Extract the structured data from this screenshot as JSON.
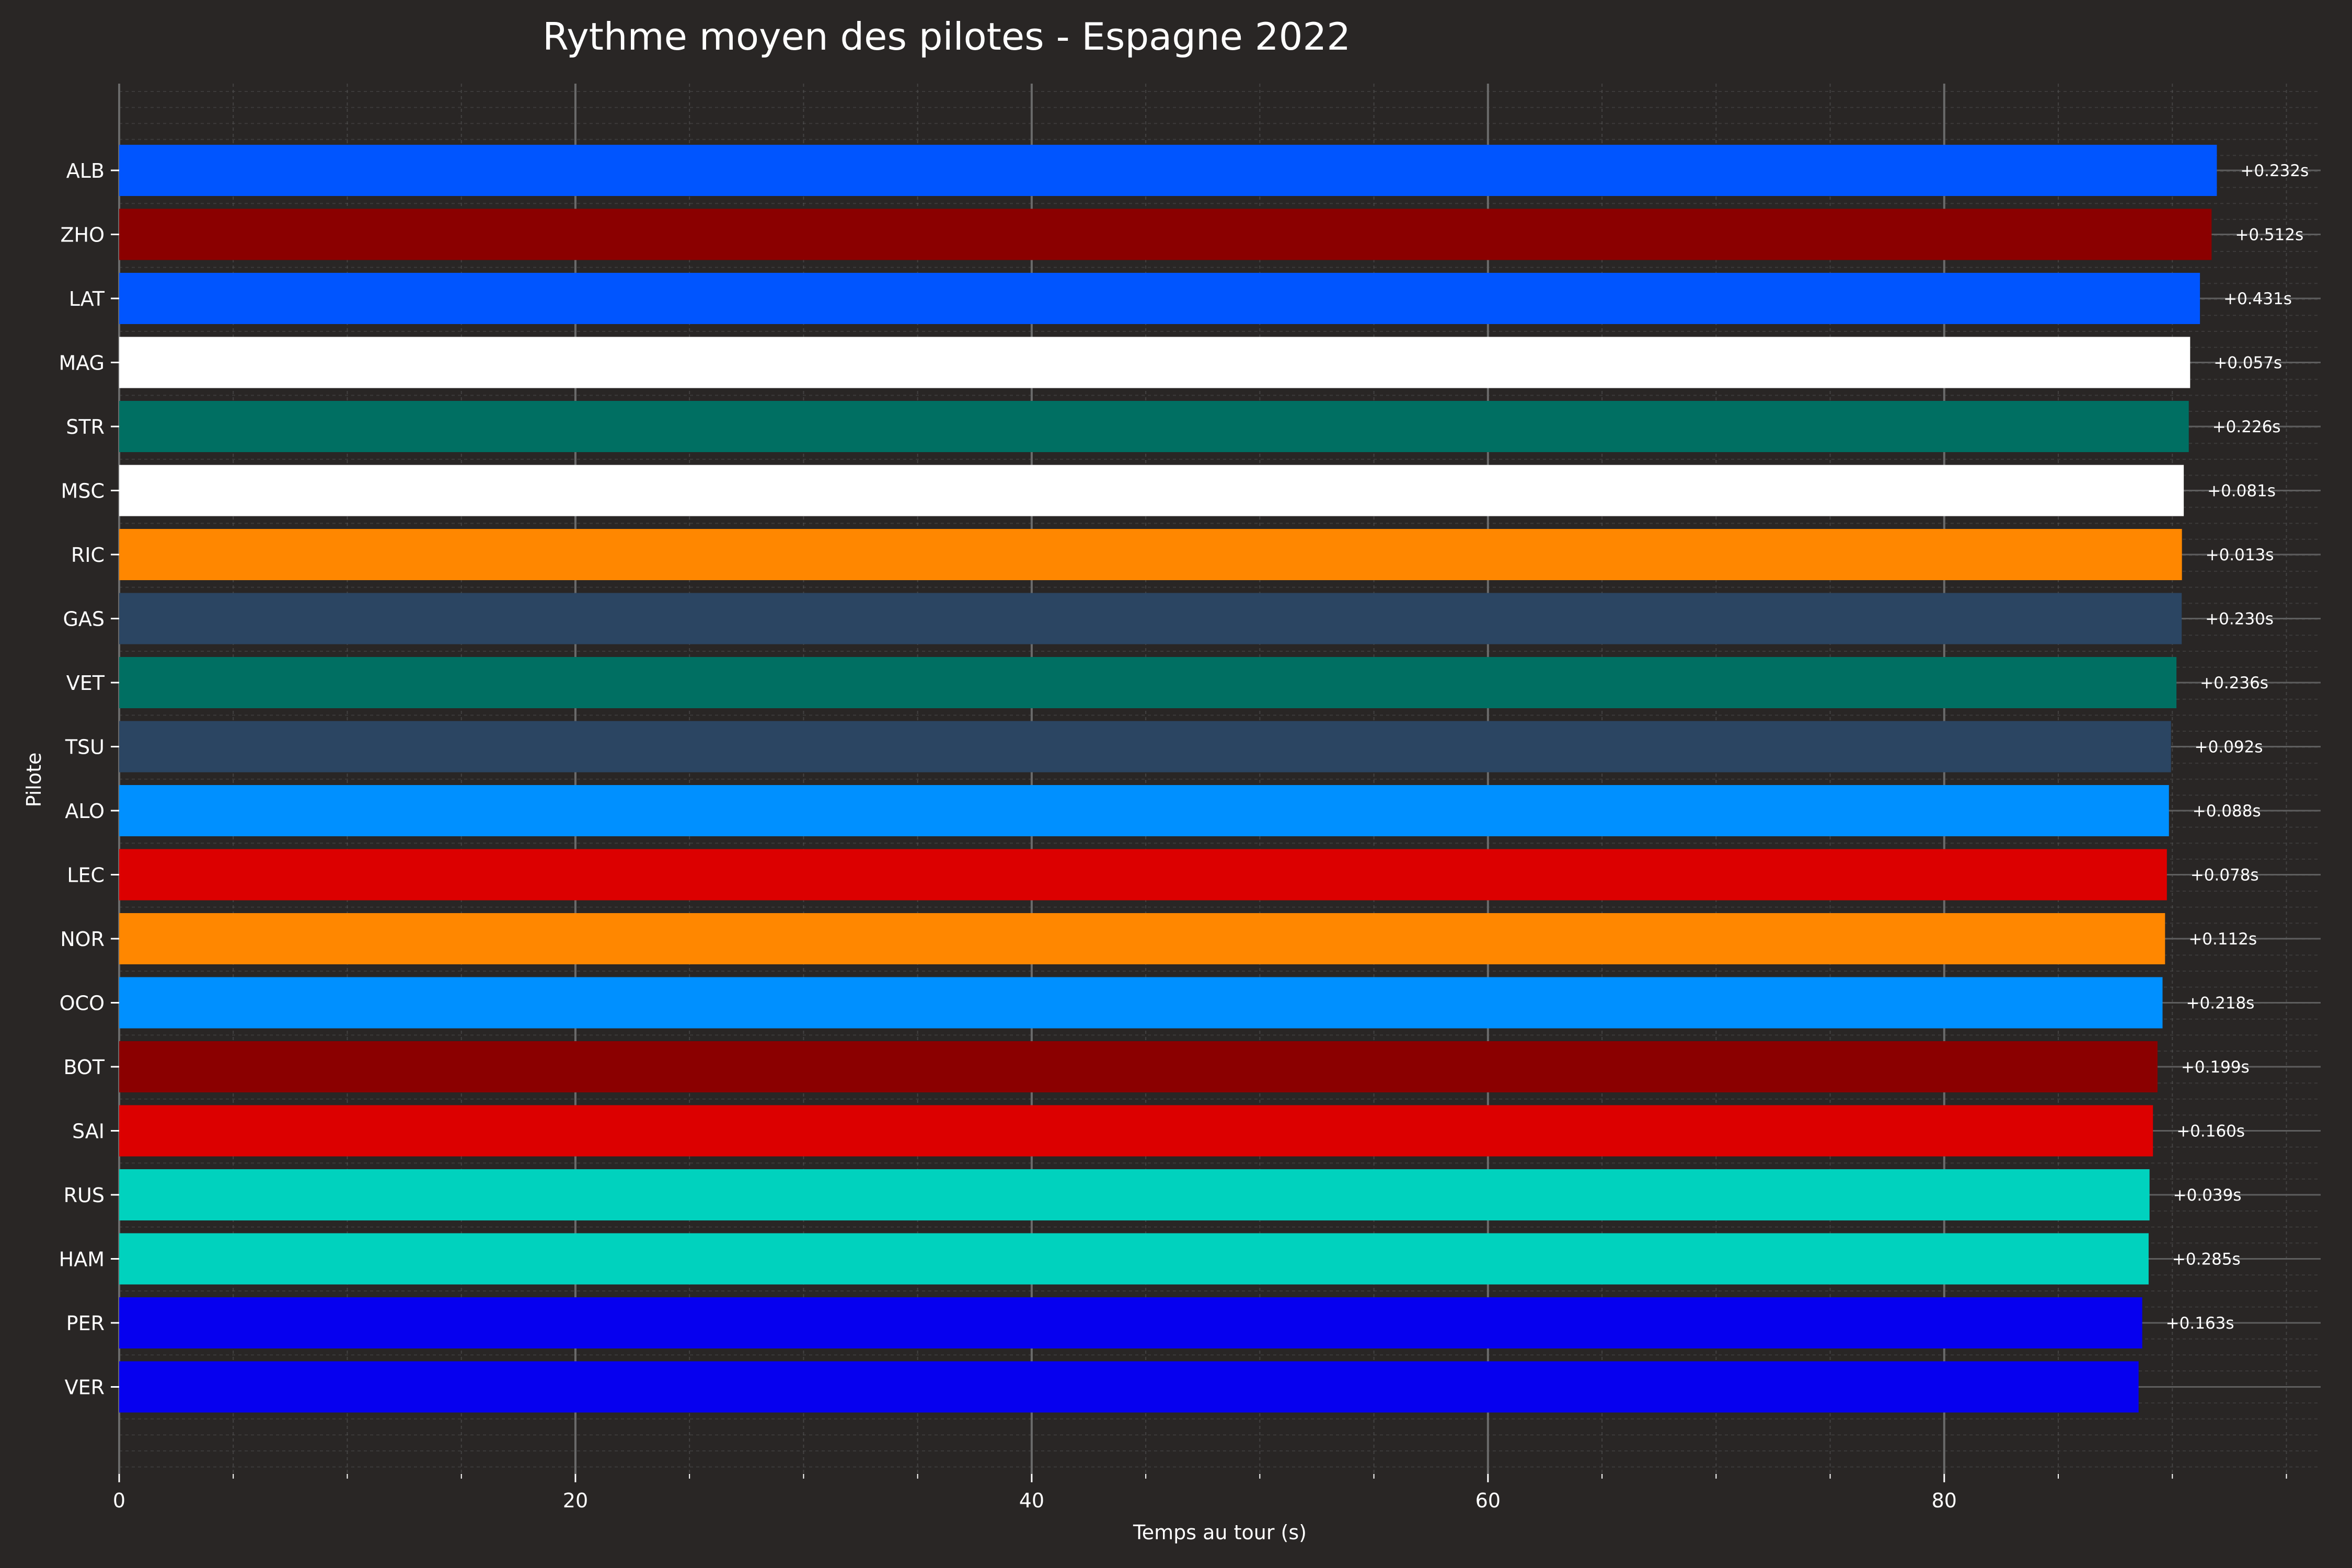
{
  "chart_data": {
    "type": "bar",
    "orientation": "horizontal",
    "title": "Rythme moyen des pilotes - Espagne 2022",
    "xlabel": "Temps au tour (s)",
    "ylabel": "Pilote",
    "xlim": [
      0,
      96.5
    ],
    "xticks": [
      0,
      20,
      40,
      60,
      80
    ],
    "grid": true,
    "legend": "none",
    "categories": [
      "ALB",
      "ZHO",
      "LAT",
      "MAG",
      "STR",
      "MSC",
      "RIC",
      "GAS",
      "VET",
      "TSU",
      "ALO",
      "LEC",
      "NOR",
      "OCO",
      "BOT",
      "SAI",
      "RUS",
      "HAM",
      "PER",
      "VER"
    ],
    "values": [
      91.95,
      91.72,
      91.21,
      90.78,
      90.72,
      90.5,
      90.42,
      90.41,
      90.18,
      89.94,
      89.85,
      89.76,
      89.68,
      89.57,
      89.35,
      89.15,
      89.0,
      88.96,
      88.68,
      88.52
    ],
    "labels": [
      "+0.232s",
      "+0.512s",
      "+0.431s",
      "+0.057s",
      "+0.226s",
      "+0.081s",
      "+0.013s",
      "+0.230s",
      "+0.236s",
      "+0.092s",
      "+0.088s",
      "+0.078s",
      "+0.112s",
      "+0.218s",
      "+0.199s",
      "+0.160s",
      "+0.039s",
      "+0.285s",
      "+0.163s",
      ""
    ],
    "colors": [
      "#0055FF",
      "#8B0000",
      "#0055FF",
      "#FFFFFF",
      "#006F62",
      "#FFFFFF",
      "#FF8700",
      "#2B4562",
      "#006F62",
      "#2B4562",
      "#0090FF",
      "#DC0000",
      "#FF8700",
      "#0090FF",
      "#8B0000",
      "#DC0000",
      "#00D2BE",
      "#00D2BE",
      "#0600EF",
      "#0600EF"
    ],
    "background": "#292625",
    "text_color": "#FFFFFF",
    "grid_color": "#5a5a5a"
  }
}
